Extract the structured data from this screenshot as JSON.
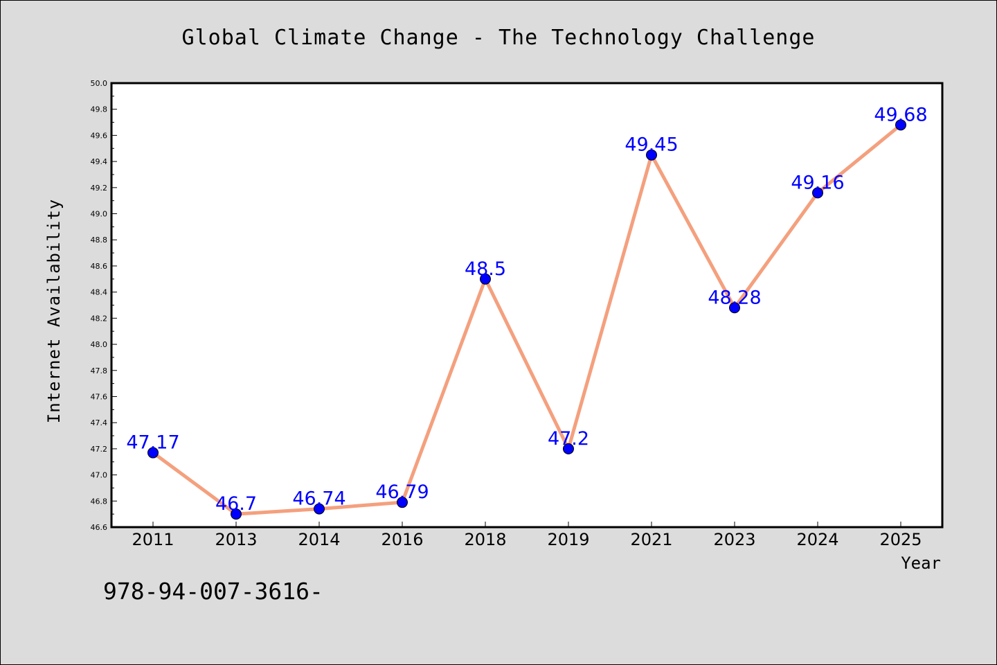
{
  "chart_data": {
    "type": "line",
    "title": "Global Climate Change - The Technology Challenge",
    "xlabel": "Year",
    "ylabel": "Internet Availability",
    "categories": [
      "2011",
      "2013",
      "2014",
      "2016",
      "2018",
      "2019",
      "2021",
      "2023",
      "2024",
      "2025"
    ],
    "values": [
      47.17,
      46.7,
      46.74,
      46.79,
      48.5,
      47.2,
      49.45,
      48.28,
      49.16,
      49.68
    ],
    "data_labels": [
      "47.17",
      "46.7",
      "46.74",
      "46.79",
      "48.5",
      "47.2",
      "49.45",
      "48.28",
      "49.16",
      "49.68"
    ],
    "ylim": [
      46.6,
      50.0
    ],
    "yticks": [
      "46.6",
      "46.8",
      "47.0",
      "47.2",
      "47.4",
      "47.6",
      "47.8",
      "48.0",
      "48.2",
      "48.4",
      "48.6",
      "48.8",
      "49.0",
      "49.2",
      "49.4",
      "49.6",
      "49.8",
      "50.0"
    ],
    "grid": false,
    "line_color": "#f4a07e",
    "marker_color": "#0000ff",
    "label_color": "#0000ff",
    "background_color": "#dcdcdc",
    "plot_background_color": "#ffffff"
  },
  "footnote": "978-94-007-3616-"
}
